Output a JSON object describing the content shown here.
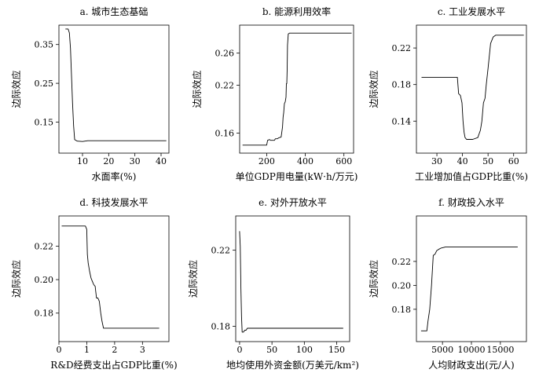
{
  "chart_data": [
    {
      "type": "line",
      "title": "a. 城市生态基础",
      "xlabel": "水面率(%)",
      "ylabel": "边际效应",
      "xlim": [
        1,
        43
      ],
      "ylim": [
        0.07,
        0.4
      ],
      "xticks": [
        10,
        20,
        30,
        40
      ],
      "yticks": [
        0.15,
        0.25,
        0.35
      ],
      "ytick_labels": [
        "0.15",
        "0.25",
        "0.35"
      ],
      "grid": false,
      "series": [
        {
          "x": [
            3.5,
            4.5,
            5.0,
            5.4,
            5.8,
            6.2,
            6.6,
            7.0,
            8.0,
            10.0,
            11.0,
            12.0,
            42.0
          ],
          "y": [
            0.39,
            0.39,
            0.38,
            0.34,
            0.27,
            0.2,
            0.14,
            0.105,
            0.101,
            0.1,
            0.101,
            0.102,
            0.102
          ]
        }
      ]
    },
    {
      "type": "line",
      "title": "b. 能源利用效率",
      "xlabel": "单位GDP用电量(kW·h/万元)",
      "ylabel": "边际效应",
      "xlim": [
        60,
        650
      ],
      "ylim": [
        0.135,
        0.295
      ],
      "xticks": [
        200,
        400,
        600
      ],
      "yticks": [
        0.16,
        0.22,
        0.26
      ],
      "ytick_labels": [
        "0.16",
        "0.22",
        "0.26"
      ],
      "grid": false,
      "series": [
        {
          "x": [
            75,
            200,
            205,
            215,
            220,
            240,
            245,
            255,
            262,
            275,
            282,
            285,
            288,
            292,
            296,
            300,
            302,
            304,
            306,
            308,
            312,
            318,
            325,
            640
          ],
          "y": [
            0.145,
            0.145,
            0.151,
            0.152,
            0.151,
            0.151,
            0.153,
            0.153,
            0.154,
            0.155,
            0.168,
            0.18,
            0.185,
            0.197,
            0.199,
            0.205,
            0.222,
            0.222,
            0.24,
            0.27,
            0.284,
            0.285,
            0.285,
            0.285
          ]
        }
      ]
    },
    {
      "type": "line",
      "title": "c. 工业发展水平",
      "xlabel": "工业增加值占GDP比重(%)",
      "ylabel": "边际效应",
      "xlim": [
        22,
        65
      ],
      "ylim": [
        0.105,
        0.245
      ],
      "xticks": [
        30,
        40,
        50,
        60
      ],
      "yticks": [
        0.14,
        0.18,
        0.22
      ],
      "ytick_labels": [
        "0.14",
        "0.18",
        "0.22"
      ],
      "grid": false,
      "series": [
        {
          "x": [
            24,
            38,
            38.5,
            39.2,
            39.8,
            40.2,
            40.6,
            41.0,
            41.6,
            42.2,
            44.0,
            46.0,
            47.0,
            47.6,
            48.2,
            48.8,
            49.3,
            50.0,
            51.0,
            52.0,
            53.0,
            64.0
          ],
          "y": [
            0.188,
            0.188,
            0.17,
            0.168,
            0.16,
            0.14,
            0.128,
            0.122,
            0.12,
            0.12,
            0.12,
            0.122,
            0.13,
            0.14,
            0.16,
            0.165,
            0.18,
            0.198,
            0.225,
            0.232,
            0.234,
            0.234
          ]
        }
      ]
    },
    {
      "type": "line",
      "title": "d. 科技发展水平",
      "xlabel": "R&D经费支出占GDP比重(%)",
      "ylabel": "边际效应",
      "xlim": [
        0,
        3.95
      ],
      "ylim": [
        0.163,
        0.238
      ],
      "xticks": [
        0,
        1,
        2,
        3
      ],
      "yticks": [
        0.18,
        0.2,
        0.22
      ],
      "ytick_labels": [
        "0.18",
        "0.20",
        "0.22"
      ],
      "grid": false,
      "series": [
        {
          "x": [
            0.1,
            0.95,
            1.0,
            1.02,
            1.05,
            1.1,
            1.15,
            1.2,
            1.25,
            1.3,
            1.35,
            1.4,
            1.45,
            1.5,
            1.55,
            1.6,
            1.7,
            3.6
          ],
          "y": [
            0.232,
            0.232,
            0.23,
            0.215,
            0.21,
            0.205,
            0.201,
            0.199,
            0.197,
            0.196,
            0.189,
            0.189,
            0.187,
            0.18,
            0.175,
            0.171,
            0.171,
            0.171
          ]
        }
      ]
    },
    {
      "type": "line",
      "title": "e. 对外开放水平",
      "xlabel": "地均使用外资金额(万美元/km²)",
      "ylabel": "边际效应",
      "xlim": [
        -6,
        170
      ],
      "ylim": [
        0.172,
        0.238
      ],
      "xticks": [
        0,
        50,
        100,
        150
      ],
      "yticks": [
        0.18,
        0.22
      ],
      "ytick_labels": [
        "0.18",
        "0.22"
      ],
      "grid": false,
      "series": [
        {
          "x": [
            0,
            1,
            2,
            3,
            4,
            6,
            8,
            10,
            12,
            160
          ],
          "y": [
            0.23,
            0.222,
            0.2,
            0.185,
            0.177,
            0.177,
            0.178,
            0.178,
            0.179,
            0.179
          ]
        }
      ]
    },
    {
      "type": "line",
      "title": "f. 财政投入水平",
      "xlabel": "人均财政支出(元/人)",
      "ylabel": "边际效应",
      "xlim": [
        500,
        19500
      ],
      "ylim": [
        0.153,
        0.258
      ],
      "xticks": [
        5000,
        10000,
        15000
      ],
      "yticks": [
        0.18,
        0.2,
        0.22
      ],
      "ytick_labels": [
        "0.18",
        "0.20",
        "0.22"
      ],
      "grid": false,
      "series": [
        {
          "x": [
            1300,
            2300,
            2500,
            2800,
            3100,
            3400,
            3700,
            4000,
            4300,
            4700,
            5500,
            18000
          ],
          "y": [
            0.162,
            0.162,
            0.17,
            0.18,
            0.2,
            0.225,
            0.226,
            0.229,
            0.23,
            0.231,
            0.232,
            0.232
          ]
        }
      ]
    }
  ]
}
